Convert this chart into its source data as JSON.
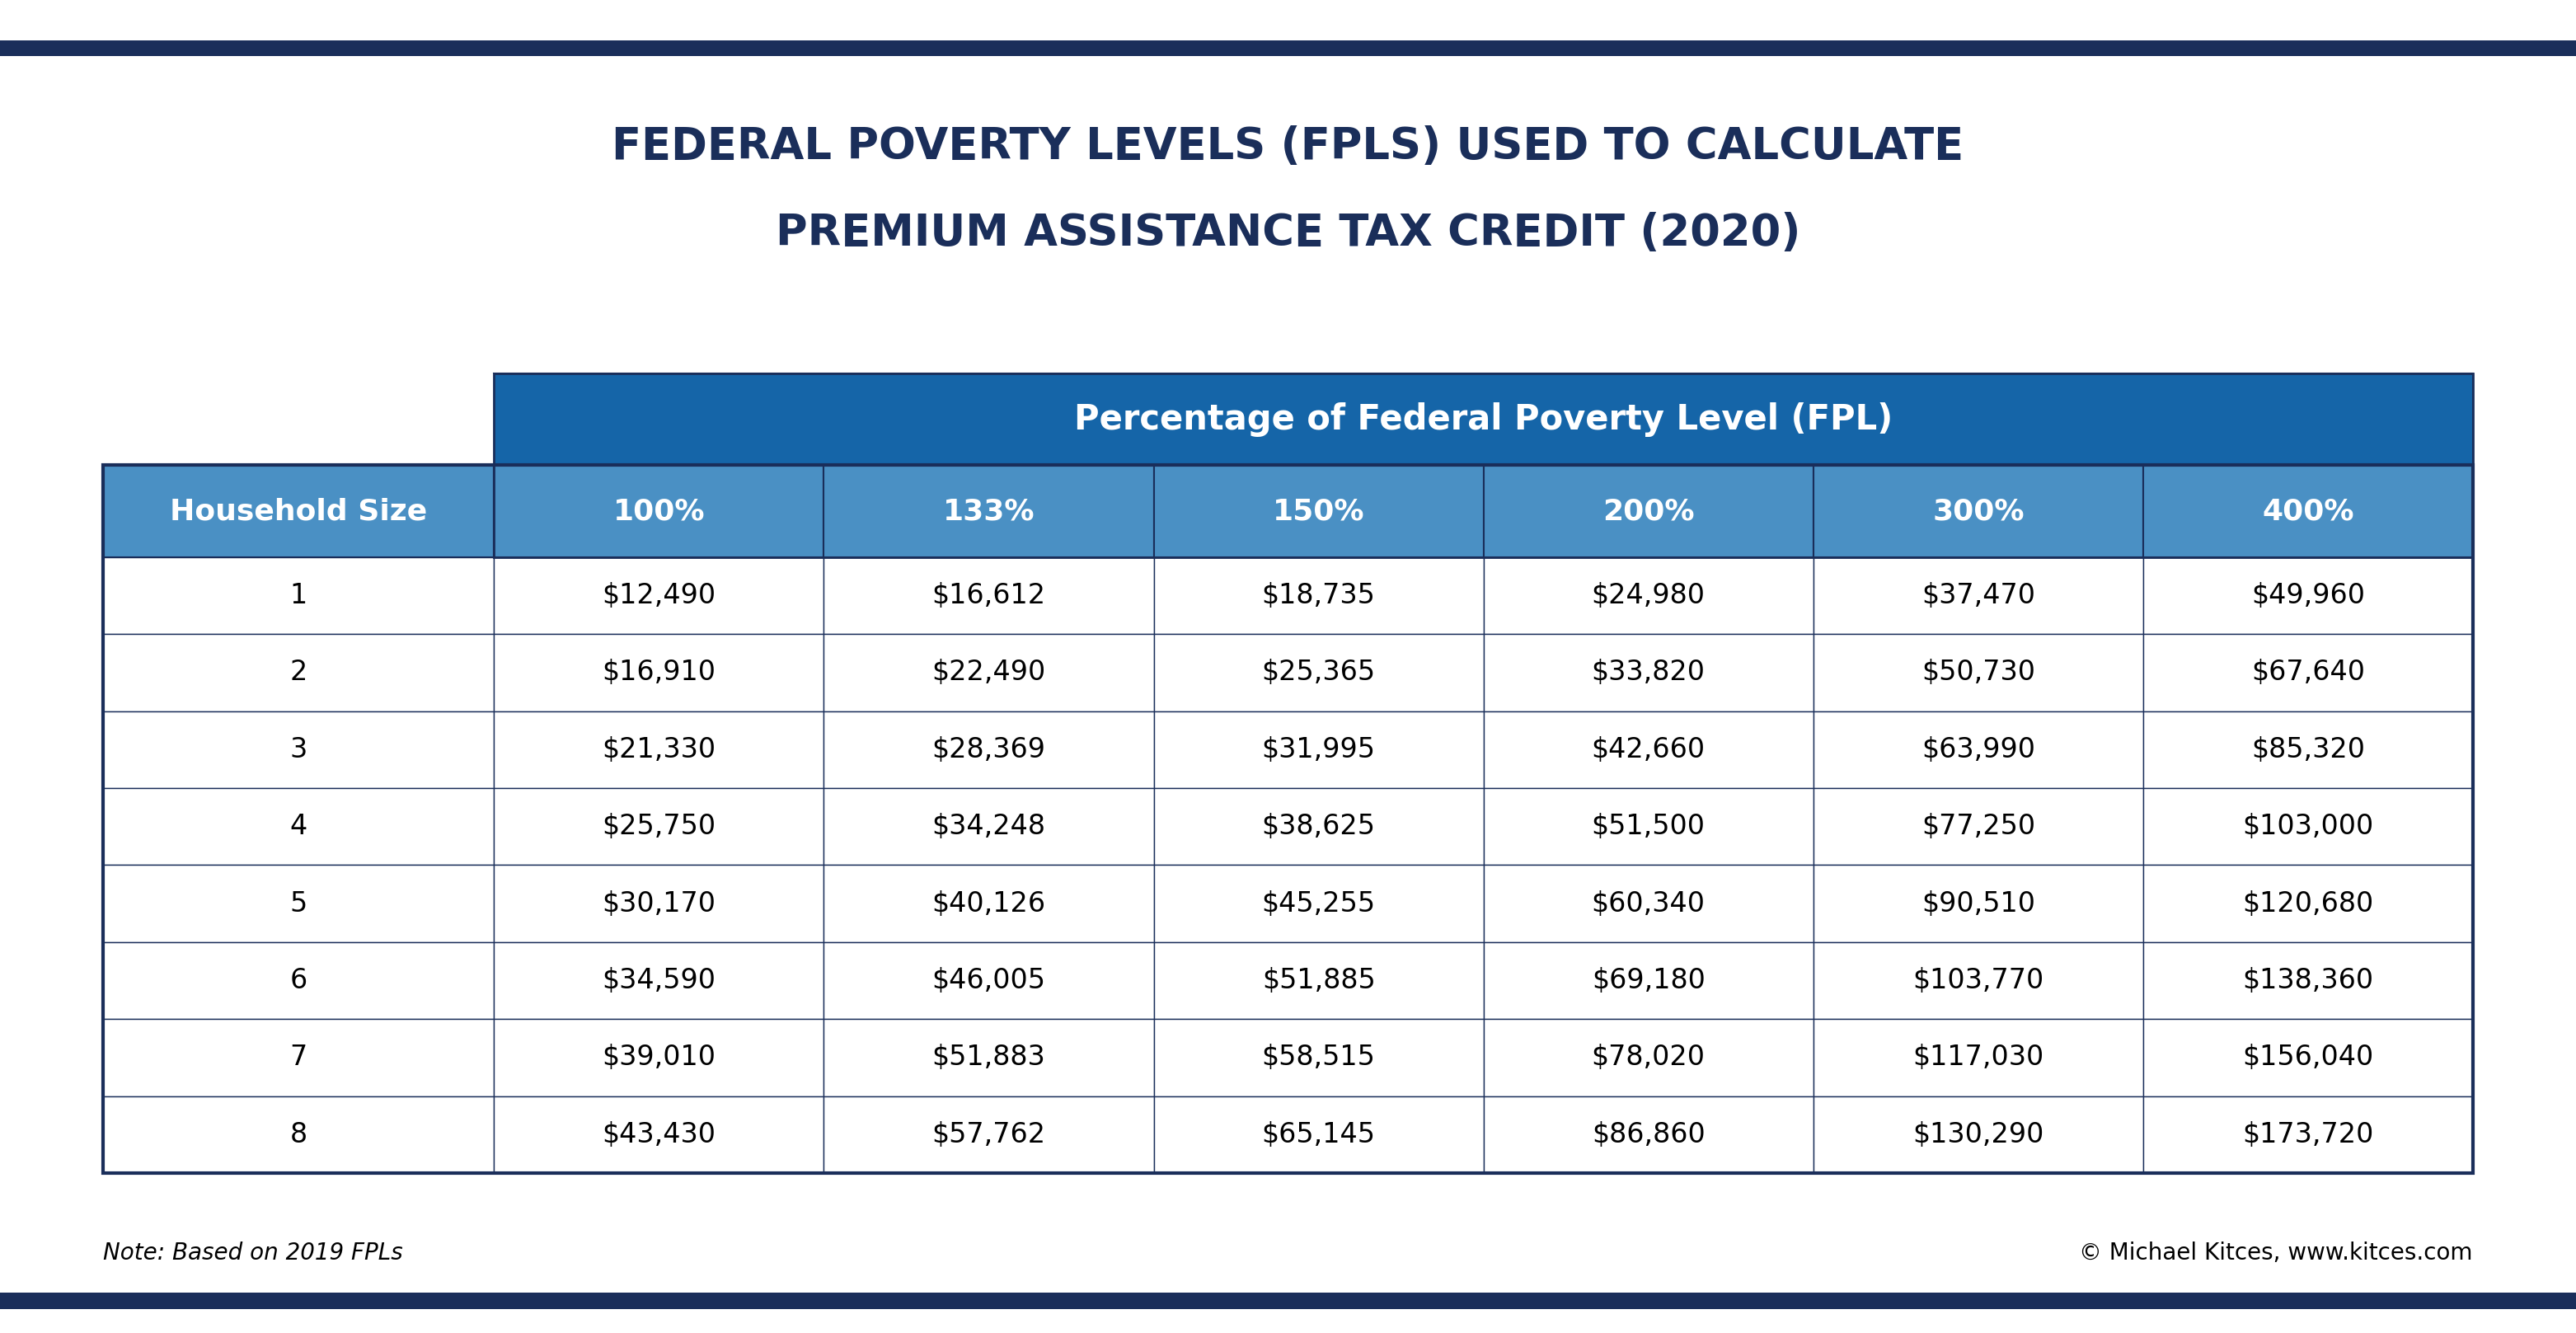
{
  "title_line1": "FEDERAL POVERTY LEVELS (FPLS) USED TO CALCULATE",
  "title_line2": "PREMIUM ASSISTANCE TAX CREDIT (2020)",
  "subtitle": "Percentage of Federal Poverty Level (FPL)",
  "col_header": "Household Size",
  "pct_headers": [
    "100%",
    "133%",
    "150%",
    "200%",
    "300%",
    "400%"
  ],
  "rows": [
    [
      "1",
      "$12,490",
      "$16,612",
      "$18,735",
      "$24,980",
      "$37,470",
      "$49,960"
    ],
    [
      "2",
      "$16,910",
      "$22,490",
      "$25,365",
      "$33,820",
      "$50,730",
      "$67,640"
    ],
    [
      "3",
      "$21,330",
      "$28,369",
      "$31,995",
      "$42,660",
      "$63,990",
      "$85,320"
    ],
    [
      "4",
      "$25,750",
      "$34,248",
      "$38,625",
      "$51,500",
      "$77,250",
      "$103,000"
    ],
    [
      "5",
      "$30,170",
      "$40,126",
      "$45,255",
      "$60,340",
      "$90,510",
      "$120,680"
    ],
    [
      "6",
      "$34,590",
      "$46,005",
      "$51,885",
      "$69,180",
      "$103,770",
      "$138,360"
    ],
    [
      "7",
      "$39,010",
      "$51,883",
      "$58,515",
      "$78,020",
      "$117,030",
      "$156,040"
    ],
    [
      "8",
      "$43,430",
      "$57,762",
      "$65,145",
      "$86,860",
      "$130,290",
      "$173,720"
    ]
  ],
  "note_left": "Note: Based on 2019 FPLs",
  "note_right": "© Michael Kitces, www.kitces.com",
  "bg_color": "#FFFFFF",
  "outer_border_color": "#1a2e5a",
  "title_color": "#1a2e5a",
  "subtitle_bg": "#1565a8",
  "subtitle_text_color": "#FFFFFF",
  "col_header_bg": "#4a90c4",
  "col_header_text_color": "#FFFFFF",
  "pct_header_bg": "#4a90c4",
  "pct_header_text_color": "#FFFFFF",
  "row_odd_bg": "#FFFFFF",
  "row_even_bg": "#FFFFFF",
  "row_text_color": "#000000",
  "grid_color": "#1a2e5a",
  "top_stripe_color": "#1a2e5a"
}
